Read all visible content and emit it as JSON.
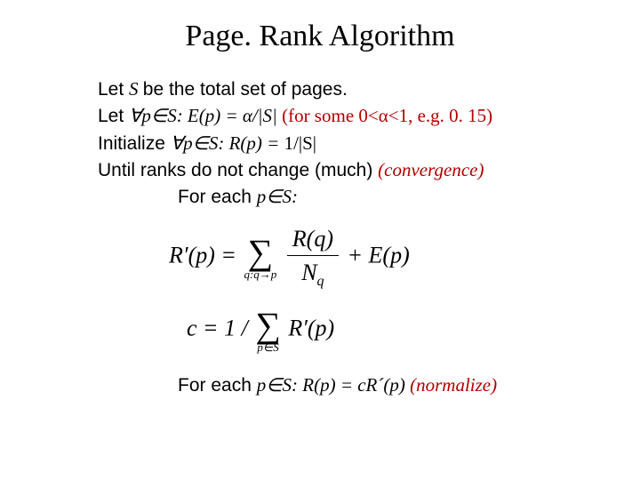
{
  "title": "Page. Rank Algorithm",
  "lines": {
    "let1_a": "Let ",
    "let1_s": "S ",
    "let1_b": "be the total set of pages.",
    "let2_a": "Let ",
    "let2_b": "∀p∈S: E(p) = α/|S|  ",
    "let2_c": "(for some 0<α<1, e.g. 0. 15)",
    "init_a": "Initialize ",
    "init_b": "∀p∈S: R(p) = ",
    "init_c": "1/|S|",
    "until_a": "Until ranks do not change (much) ",
    "until_b": "(convergence)",
    "for1_a": "For each ",
    "for1_b": "p∈S:",
    "for2_a": "For each ",
    "for2_b": "p∈S: R(p) = cR´(p)  ",
    "for2_c": "(normalize)"
  },
  "eq1": {
    "lhs": "R′(p) =",
    "sum_sub": "q:q→p",
    "frac_num": "R(q)",
    "frac_den_a": "N",
    "frac_den_sub": "q",
    "plus": " + E(p)"
  },
  "eq2": {
    "lhs": "c = 1 / ",
    "sum_sub": "p∈S",
    "term": " R′(p)"
  },
  "style": {
    "title_fontsize": 34,
    "body_fontsize": 21,
    "eq_fontsize": 26,
    "title_color": "#000000",
    "body_color": "#000000",
    "red_color": "#b00000",
    "background": "#ffffff",
    "title_font": "Times New Roman",
    "body_font_sans": "Arial",
    "body_font_serif_italic": "Times New Roman Italic"
  }
}
